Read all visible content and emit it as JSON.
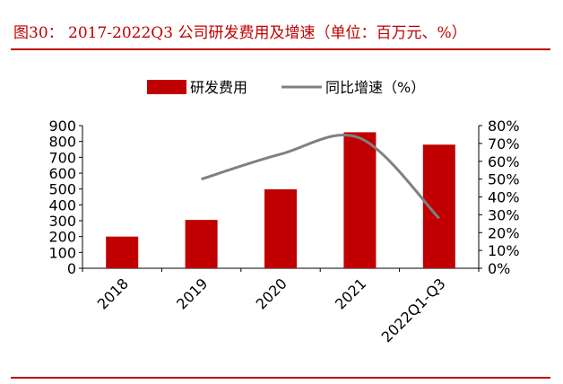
{
  "title": "图30：  2017-2022Q3 公司研发费用及增速（单位：百万元、%）",
  "colors": {
    "bar": "#c00000",
    "line": "#808080",
    "rule": "#c00000"
  },
  "chart_data": {
    "type": "bar",
    "categories": [
      "2018",
      "2019",
      "2020",
      "2021",
      "2022Q1-Q3"
    ],
    "series": [
      {
        "name": "研发费用",
        "type": "bar",
        "axis": "left",
        "values": [
          200,
          305,
          498,
          858,
          780
        ]
      },
      {
        "name": "同比增速（%）",
        "type": "line",
        "axis": "right",
        "values": [
          null,
          50,
          64,
          73,
          28
        ]
      }
    ],
    "ylim_left": [
      0,
      900
    ],
    "yticks_left": [
      "0",
      "100",
      "200",
      "300",
      "400",
      "500",
      "600",
      "700",
      "800",
      "900"
    ],
    "ylim_right": [
      0,
      80
    ],
    "yticks_right": [
      "0%",
      "10%",
      "20%",
      "30%",
      "40%",
      "50%",
      "60%",
      "70%",
      "80%"
    ],
    "legend": "top",
    "grid": false
  }
}
